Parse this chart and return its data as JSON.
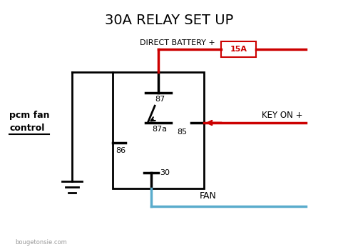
{
  "title": "30A RELAY SET UP",
  "title_fontsize": 14,
  "background_color": "#ffffff",
  "text_color": "#000000",
  "red_color": "#cc0000",
  "blue_color": "#5aaccc",
  "labels": {
    "direct_battery": "DIRECT BATTERY +",
    "key_on": "KEY ON +",
    "fan": "FAN",
    "pcm_line1": "pcm fan",
    "pcm_line2": "control",
    "fuse": "15A",
    "pin87": "87",
    "pin87a": "87a",
    "pin86": "86",
    "pin85": "85",
    "pin30": "30",
    "watermark": "bougetonsie.com"
  },
  "figsize": [
    4.74,
    3.53
  ],
  "dpi": 100
}
